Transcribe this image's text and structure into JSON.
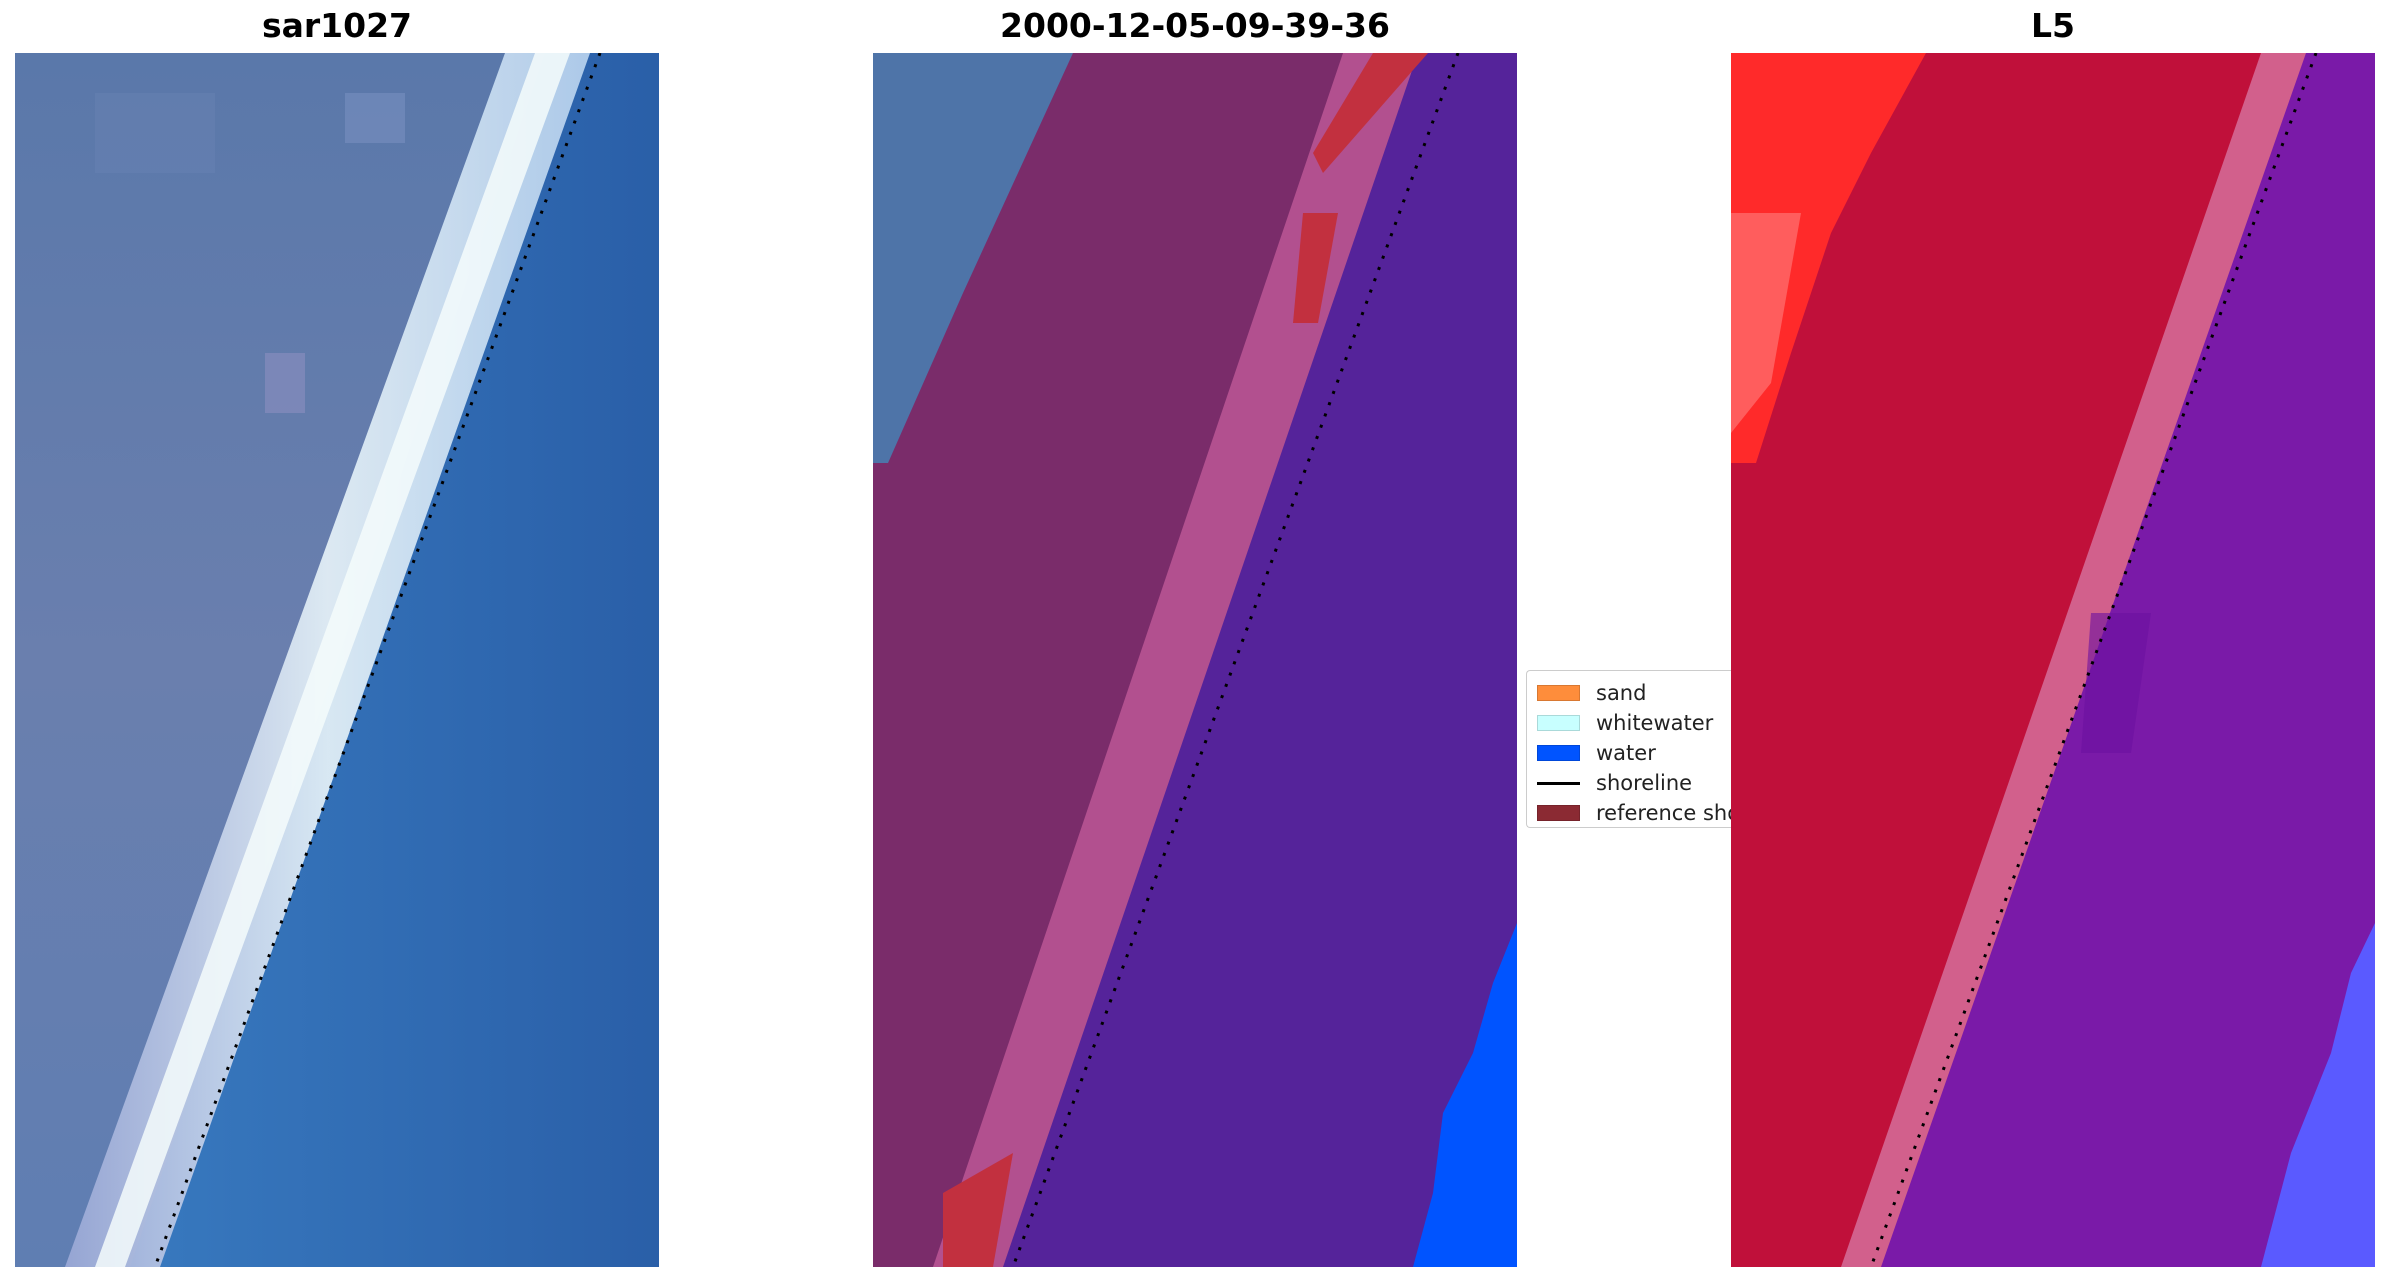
{
  "panels": [
    {
      "title": "sar1027"
    },
    {
      "title": "2000-12-05-09-39-36"
    },
    {
      "title": "L5"
    }
  ],
  "legend": {
    "items": [
      {
        "label": "sand",
        "color": "#fe8d3b",
        "kind": "patch"
      },
      {
        "label": "whitewater",
        "color": "#c8ffff",
        "kind": "patch"
      },
      {
        "label": "water",
        "color": "#0054ff",
        "kind": "patch"
      },
      {
        "label": "shoreline",
        "color": "#000000",
        "kind": "line"
      },
      {
        "label": "reference shoreline",
        "color": "#8b2a33",
        "kind": "patch"
      }
    ]
  },
  "colors": {
    "rgb_land": "#5f79a8",
    "rgb_whitewater": "#dde8f5",
    "rgb_water": "#2f73b8",
    "class_land": "#7a2c6a",
    "class_buffer": "#b2508f",
    "class_water": "#55239a",
    "class_sand": "#c2303f",
    "class_water_blue": "#0054ff",
    "ndwi_land": "#c0103a",
    "ndwi_land_bright": "#ff2020",
    "ndwi_water": "#7a1aa8",
    "ndwi_water_blue": "#5a5aff"
  }
}
